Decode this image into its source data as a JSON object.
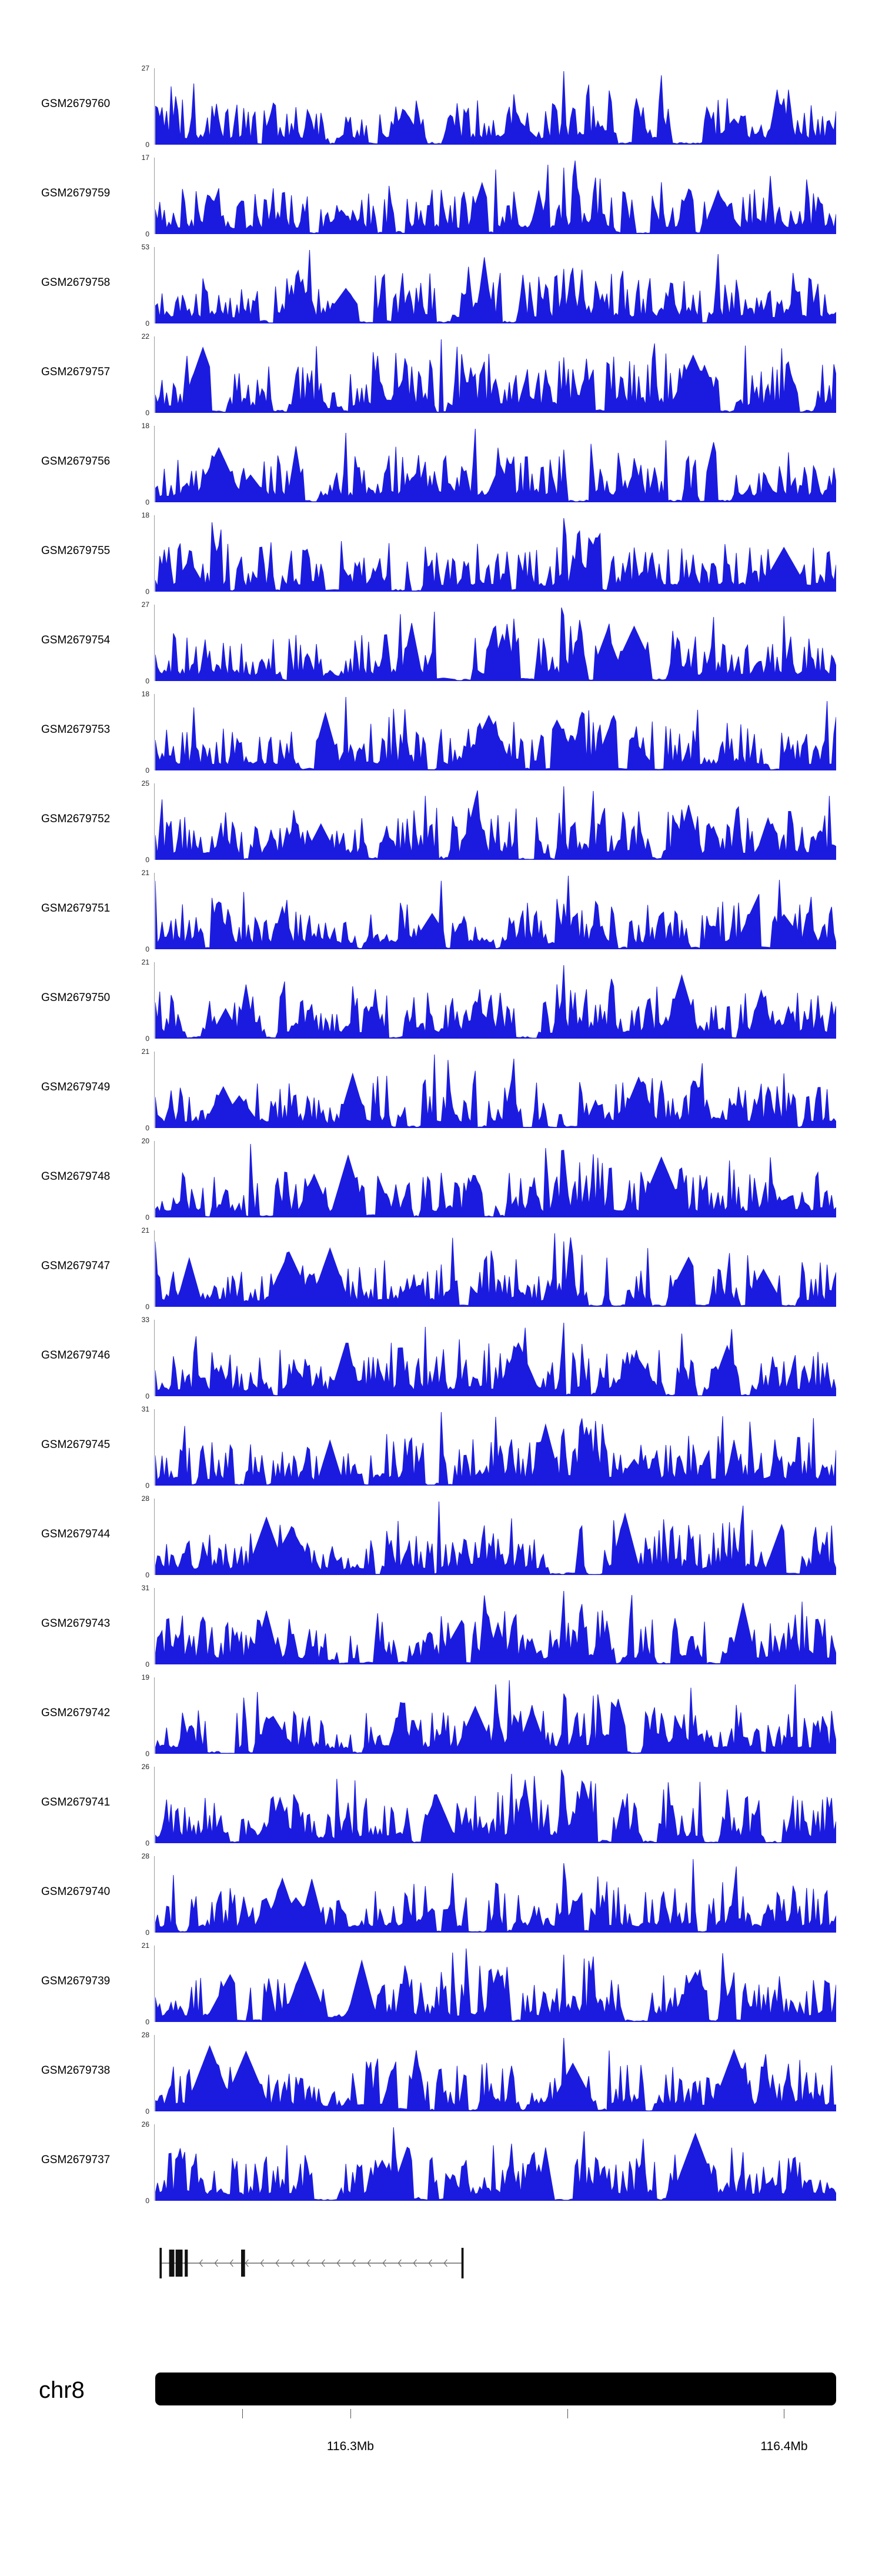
{
  "colors": {
    "signal": "#1b1be0",
    "axis": "#9a9a9a",
    "text": "#000000",
    "ideogram_fill": "#000000",
    "gene_line": "#666666",
    "gene_exon": "#111111"
  },
  "chart_data": {
    "type": "area",
    "subtype": "genome-browser-coverage-tracks",
    "x_axis": {
      "unit": "Mb",
      "chromosome": "chr8",
      "region_start_mb": 116.255,
      "region_end_mb": 116.412,
      "tick_labels": [
        "116.3Mb",
        "116.4Mb"
      ]
    },
    "y_axis": {
      "min_label": "0"
    },
    "n_points": 300,
    "tracks": [
      {
        "sample": "GSM2679760",
        "ymax": 27,
        "max_peak_x": 0.6
      },
      {
        "sample": "GSM2679759",
        "ymax": 17,
        "max_peak_x": 0.615
      },
      {
        "sample": "GSM2679758",
        "ymax": 53,
        "max_peak_x": 0.225
      },
      {
        "sample": "GSM2679757",
        "ymax": 22,
        "max_peak_x": 0.42
      },
      {
        "sample": "GSM2679756",
        "ymax": 18,
        "max_peak_x": 0.47
      },
      {
        "sample": "GSM2679755",
        "ymax": 18,
        "max_peak_x": 0.6
      },
      {
        "sample": "GSM2679754",
        "ymax": 27,
        "max_peak_x": 0.595
      },
      {
        "sample": "GSM2679753",
        "ymax": 18,
        "max_peak_x": 0.28
      },
      {
        "sample": "GSM2679752",
        "ymax": 25,
        "max_peak_x": 0.6
      },
      {
        "sample": "GSM2679751",
        "ymax": 21,
        "max_peak_x": 0.605
      },
      {
        "sample": "GSM2679750",
        "ymax": 21,
        "max_peak_x": 0.6
      },
      {
        "sample": "GSM2679749",
        "ymax": 21,
        "max_peak_x": 0.41
      },
      {
        "sample": "GSM2679748",
        "ymax": 20,
        "max_peak_x": 0.14
      },
      {
        "sample": "GSM2679747",
        "ymax": 21,
        "max_peak_x": 0.585
      },
      {
        "sample": "GSM2679746",
        "ymax": 33,
        "max_peak_x": 0.6
      },
      {
        "sample": "GSM2679745",
        "ymax": 31,
        "max_peak_x": 0.42
      },
      {
        "sample": "GSM2679744",
        "ymax": 28,
        "max_peak_x": 0.415
      },
      {
        "sample": "GSM2679743",
        "ymax": 31,
        "max_peak_x": 0.6
      },
      {
        "sample": "GSM2679742",
        "ymax": 19,
        "max_peak_x": 0.52
      },
      {
        "sample": "GSM2679741",
        "ymax": 26,
        "max_peak_x": 0.595
      },
      {
        "sample": "GSM2679740",
        "ymax": 28,
        "max_peak_x": 0.79
      },
      {
        "sample": "GSM2679739",
        "ymax": 21,
        "max_peak_x": 0.455
      },
      {
        "sample": "GSM2679738",
        "ymax": 28,
        "max_peak_x": 0.6
      },
      {
        "sample": "GSM2679737",
        "ymax": 26,
        "max_peak_x": 0.35
      }
    ],
    "envelope": [
      0.5,
      0.62,
      0.55,
      0.6,
      0.48,
      0.58,
      0.66,
      0.52,
      0.34,
      0.56,
      0.64,
      0.68,
      0.58,
      0.62,
      0.54,
      0.66,
      0.72,
      0.6,
      0.52,
      0.78,
      0.85,
      0.66,
      0.58,
      0.68,
      0.62,
      0.56,
      0.66,
      0.6,
      0.52,
      0.64,
      0.58,
      0.6
    ],
    "common_peaks": [
      {
        "x": 0.225,
        "h": 0.55,
        "w": 0.004
      },
      {
        "x": 0.37,
        "h": 0.5,
        "w": 0.004
      },
      {
        "x": 0.455,
        "h": 0.62,
        "w": 0.003
      },
      {
        "x": 0.52,
        "h": 0.45,
        "w": 0.003
      },
      {
        "x": 0.6,
        "h": 0.92,
        "w": 0.003
      },
      {
        "x": 0.615,
        "h": 0.55,
        "w": 0.004
      },
      {
        "x": 0.655,
        "h": 0.48,
        "w": 0.003
      },
      {
        "x": 0.79,
        "h": 0.52,
        "w": 0.003
      },
      {
        "x": 0.935,
        "h": 0.42,
        "w": 0.003
      }
    ]
  },
  "gene_model": {
    "strand": "-",
    "start_mb": 116.256,
    "end_mb": 116.326,
    "exons": [
      {
        "mb": 116.256,
        "w_mb": 0.0005,
        "h": 52
      },
      {
        "mb": 116.2582,
        "w_mb": 0.0012,
        "h": 46
      },
      {
        "mb": 116.2597,
        "w_mb": 0.0016,
        "h": 46
      },
      {
        "mb": 116.2618,
        "w_mb": 0.0007,
        "h": 46
      },
      {
        "mb": 116.2748,
        "w_mb": 0.0009,
        "h": 46
      },
      {
        "mb": 116.3256,
        "w_mb": 0.0005,
        "h": 52
      }
    ]
  },
  "ideogram": {
    "chromosome": "chr8",
    "ruler_ticks": [
      {
        "mb": 116.275,
        "label": ""
      },
      {
        "mb": 116.3,
        "label": "116.3Mb"
      },
      {
        "mb": 116.35,
        "label": ""
      },
      {
        "mb": 116.4,
        "label": "116.4Mb"
      }
    ]
  }
}
